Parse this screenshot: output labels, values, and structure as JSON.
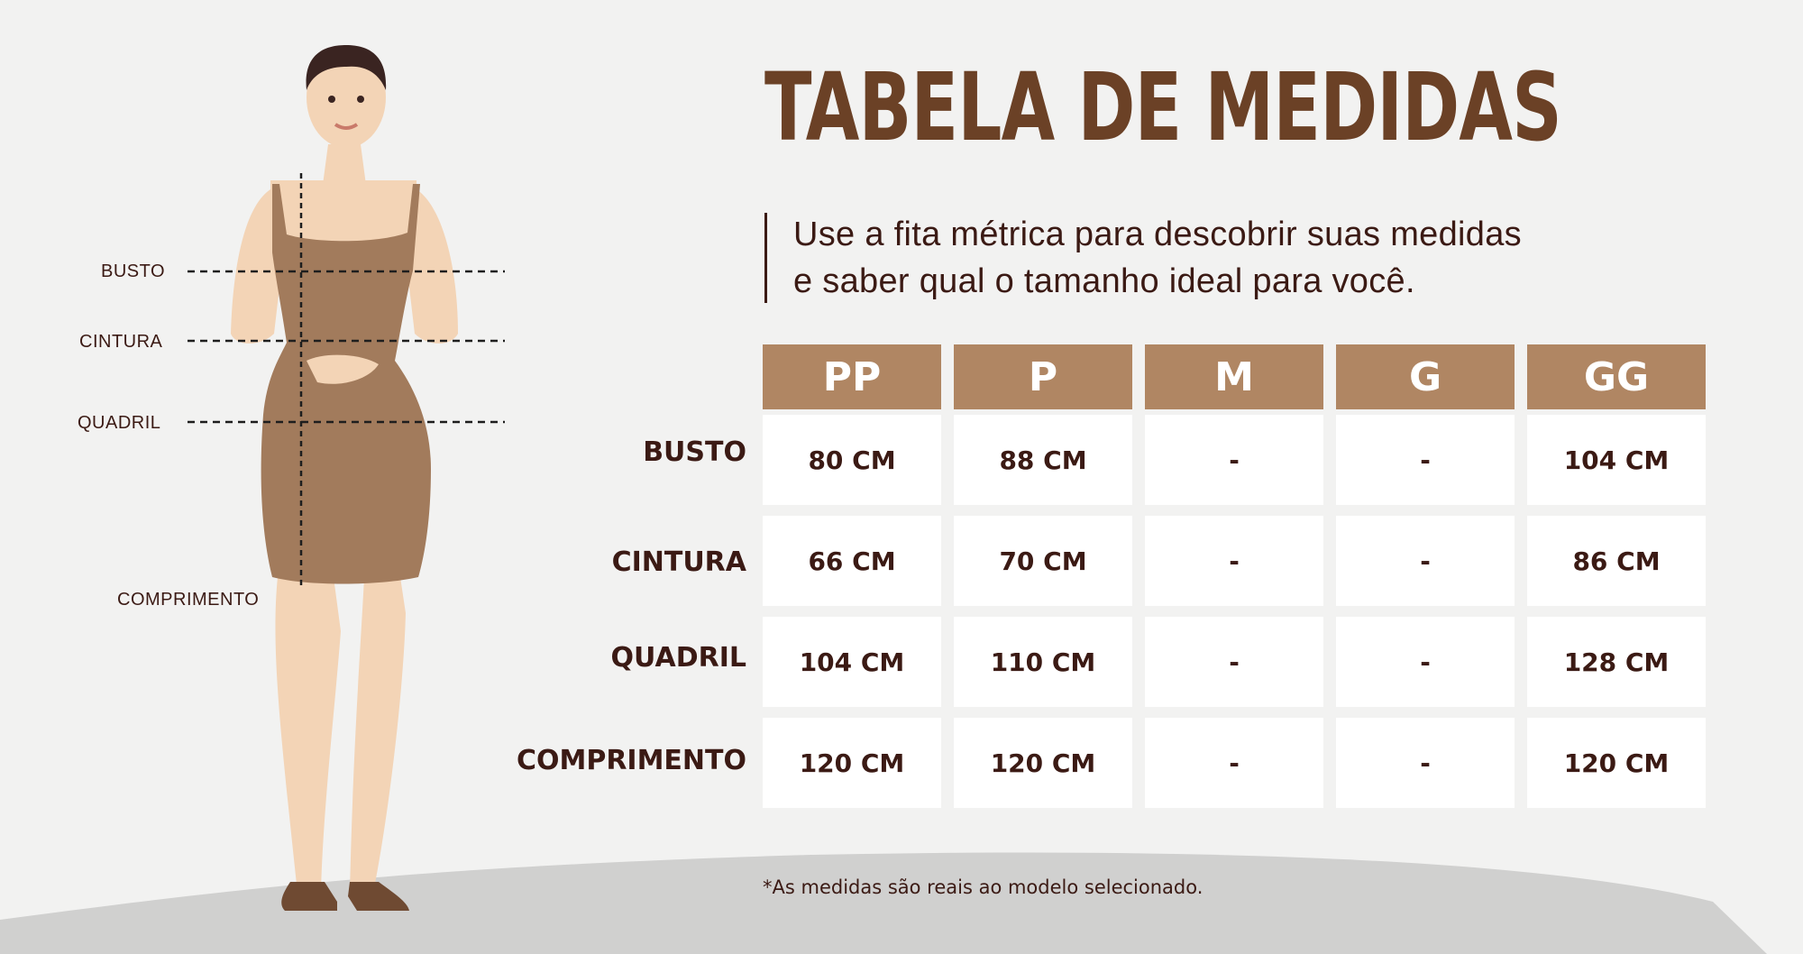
{
  "title": "TABELA DE MEDIDAS",
  "subtitle_line1": "Use a fita métrica para descobrir suas medidas",
  "subtitle_line2": "e saber qual o tamanho ideal para você.",
  "figure_labels": {
    "busto": "BUSTO",
    "cintura": "CINTURA",
    "quadril": "QUADRIL",
    "comprimento": "COMPRIMENTO"
  },
  "table": {
    "sizes": [
      "PP",
      "P",
      "M",
      "G",
      "GG"
    ],
    "rows": [
      {
        "label": "BUSTO",
        "values": [
          "80 CM",
          "88 CM",
          "-",
          "-",
          "104 CM"
        ]
      },
      {
        "label": "CINTURA",
        "values": [
          "66 CM",
          "70 CM",
          "-",
          "-",
          "86 CM"
        ]
      },
      {
        "label": "QUADRIL",
        "values": [
          "104 CM",
          "110 CM",
          "-",
          "-",
          "128 CM"
        ]
      },
      {
        "label": "COMPRIMENTO",
        "values": [
          "120 CM",
          "120 CM",
          "-",
          "-",
          "120 CM"
        ]
      }
    ]
  },
  "footnote": "*As medidas são reais ao modelo selecionado.",
  "colors": {
    "background": "#f2f2f1",
    "ground": "#d0d0cf",
    "header": "#b08663",
    "title": "#6b4126",
    "text": "#3b1a14",
    "dress": "#a27b5c",
    "skin": "#f3d4b6"
  }
}
